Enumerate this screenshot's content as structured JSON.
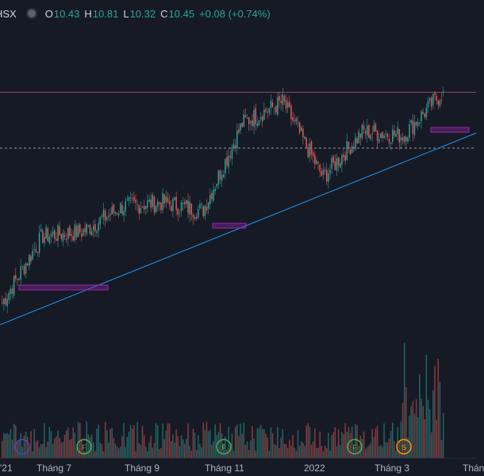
{
  "header": {
    "symbol": "HSX",
    "ohlc": [
      {
        "label": "O",
        "value": "10.43"
      },
      {
        "label": "H",
        "value": "10.81"
      },
      {
        "label": "L",
        "value": "10.32"
      },
      {
        "label": "C",
        "value": "10.45"
      }
    ],
    "change": "+0.08 (+0.74%)"
  },
  "colors": {
    "background": "#161a25",
    "up": "#26a69a",
    "down": "#ef5350",
    "trendline": "#2196f3",
    "zone": "#9c27b0",
    "resistance_line": "#8e4a5e"
  },
  "chart_data": {
    "type": "candlestick",
    "title": "",
    "x_tick_labels": [
      "'21",
      "Tháng 7",
      "Tháng 9",
      "Tháng 11",
      "2022",
      "Tháng 3",
      "Thán"
    ],
    "price_axis_visible": false,
    "grid": false,
    "price_series": [
      {
        "date": "2021-05",
        "close": 5.4
      },
      {
        "date": "2021-06",
        "close": 7.0
      },
      {
        "date": "2021-07",
        "close": 7.1
      },
      {
        "date": "2021-08",
        "close": 7.7
      },
      {
        "date": "2021-09",
        "close": 7.8
      },
      {
        "date": "2021-10",
        "close": 7.6
      },
      {
        "date": "2021-11",
        "close": 9.7
      },
      {
        "date": "2021-12",
        "close": 10.2
      },
      {
        "date": "2022-01",
        "close": 8.4
      },
      {
        "date": "2022-02",
        "close": 9.5
      },
      {
        "date": "2022-03",
        "close": 9.4
      },
      {
        "date": "2022-04",
        "close": 10.45
      }
    ],
    "last_bar": {
      "open": 10.43,
      "high": 10.81,
      "low": 10.32,
      "close": 10.45,
      "change": 0.08,
      "change_pct": 0.74
    },
    "volume_shown": true,
    "event_markers": [
      {
        "kind": "dividend",
        "letter": ""
      },
      {
        "kind": "earnings",
        "letter": "F"
      },
      {
        "kind": "earnings",
        "letter": "F"
      },
      {
        "kind": "earnings",
        "letter": "F"
      },
      {
        "kind": "split",
        "letter": "S"
      }
    ],
    "annotations": [
      "ascending trendline",
      "support zones",
      "resistance line"
    ]
  }
}
